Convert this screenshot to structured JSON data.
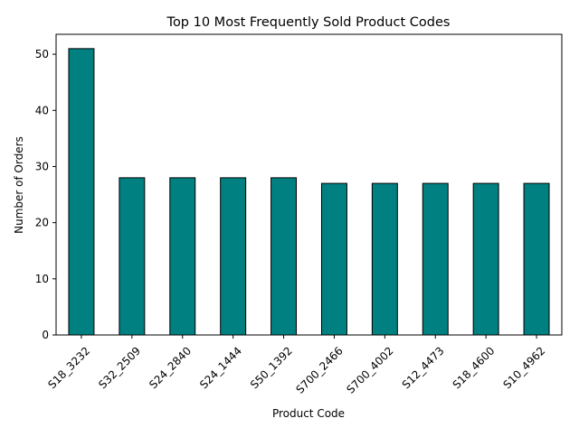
{
  "chart_data": {
    "type": "bar",
    "title": "Top 10 Most Frequently Sold Product Codes",
    "xlabel": "Product Code",
    "ylabel": "Number of Orders",
    "categories": [
      "S18_3232",
      "S32_2509",
      "S24_2840",
      "S24_1444",
      "S50_1392",
      "S700_2466",
      "S700_4002",
      "S12_4473",
      "S18_4600",
      "S10_4962"
    ],
    "values": [
      51,
      28,
      28,
      28,
      28,
      27,
      27,
      27,
      27,
      27
    ],
    "ylim": [
      0,
      53.55
    ],
    "yticks": [
      0,
      10,
      20,
      30,
      40,
      50
    ],
    "bar_color": "#008080",
    "edge_color": "#000000",
    "grid": false,
    "legend": "none"
  }
}
